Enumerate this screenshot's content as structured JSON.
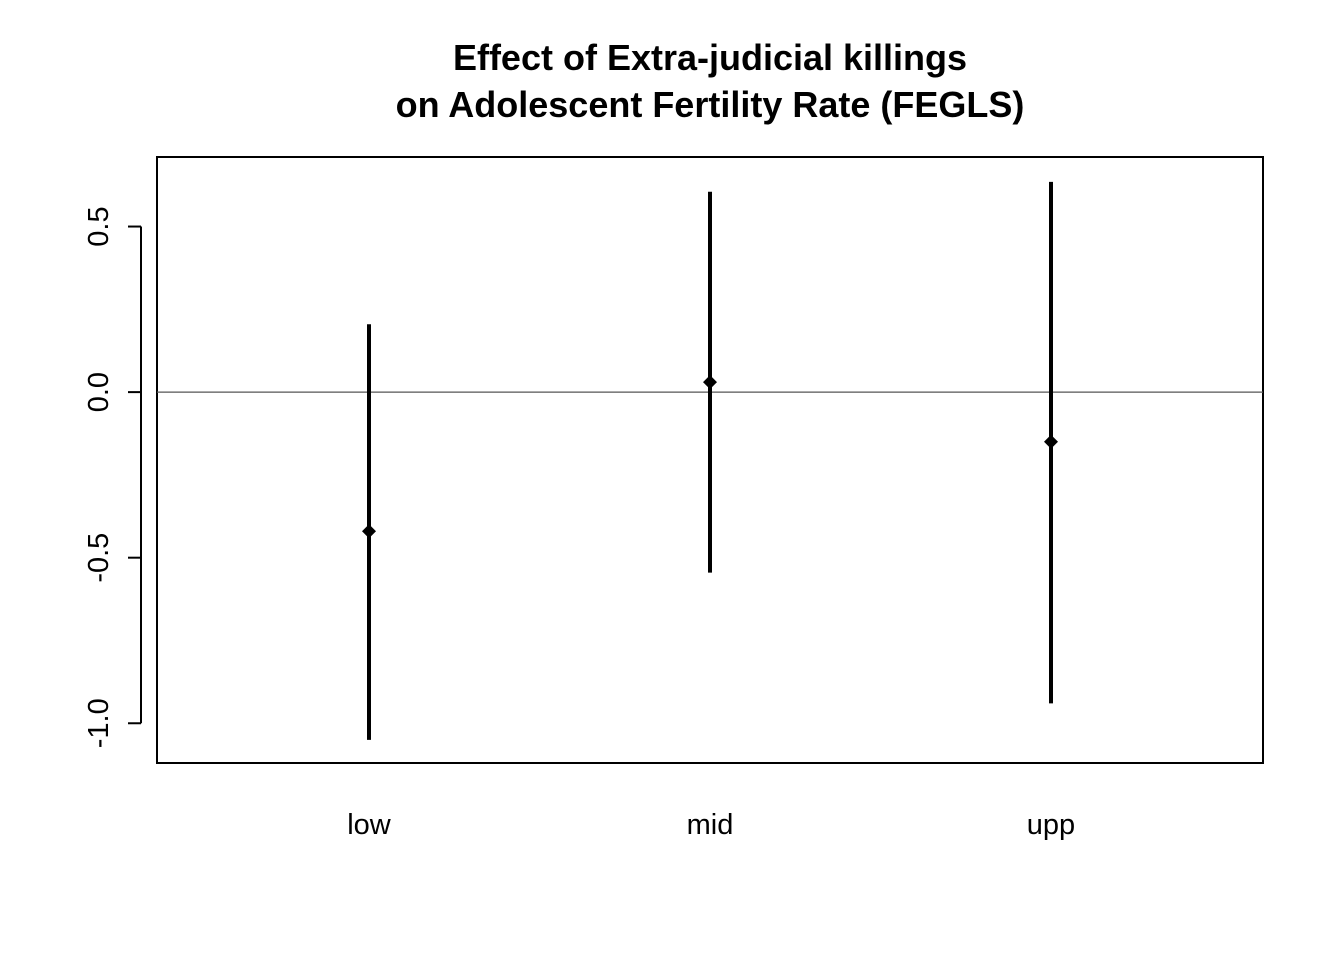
{
  "chart_data": {
    "type": "errorbar",
    "title_line1": "Effect of Extra-judicial killings",
    "title_line2": "on Adolescent Fertility Rate (FEGLS)",
    "xlabel": "",
    "ylabel": "",
    "categories": [
      "low",
      "mid",
      "upp"
    ],
    "estimates": [
      -0.42,
      0.03,
      -0.15
    ],
    "lower": [
      -1.05,
      -0.545,
      -0.94
    ],
    "upper": [
      0.205,
      0.605,
      0.635
    ],
    "ylim": [
      -1.12,
      0.71
    ],
    "yticks": [
      -1.0,
      -0.5,
      0.0,
      0.5
    ],
    "ytick_labels": [
      "-1.0",
      "-0.5",
      "0.0",
      "0.5"
    ],
    "reference_line": 0,
    "grid": false,
    "legend": "none",
    "colors": {
      "marks": "#000000",
      "reference_line": "#555555",
      "frame": "#000000"
    }
  }
}
